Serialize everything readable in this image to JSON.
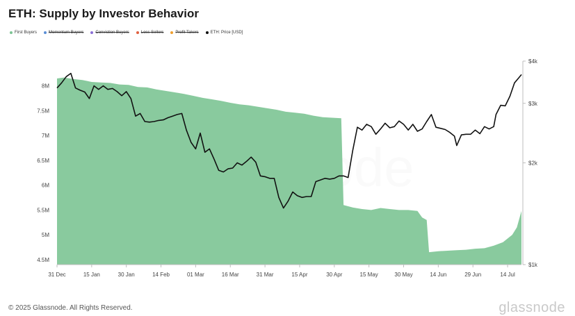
{
  "title": "ETH: Supply by Investor Behavior",
  "legend": [
    {
      "label": "First Buyers",
      "color": "#7cc494",
      "disabled": false
    },
    {
      "label": "Momentum Buyers",
      "color": "#5b8fd6",
      "disabled": true
    },
    {
      "label": "Conviction Buyers",
      "color": "#8b6fd6",
      "disabled": true
    },
    {
      "label": "Loss Sellers",
      "color": "#e06040",
      "disabled": true
    },
    {
      "label": "Profit Takers",
      "color": "#f0a030",
      "disabled": true
    },
    {
      "label": "ETH: Price [USD]",
      "color": "#111111",
      "disabled": false
    }
  ],
  "footer": "© 2025 Glassnode. All Rights Reserved.",
  "brand": "glassnode",
  "watermark": "glassnode",
  "chart_data": {
    "type": "area",
    "x_ticks": [
      "31 Dec",
      "15 Jan",
      "30 Jan",
      "14 Feb",
      "01 Mar",
      "16 Mar",
      "31 Mar",
      "15 Apr",
      "30 Apr",
      "15 May",
      "30 May",
      "14 Jun",
      "29 Jun",
      "14 Jul"
    ],
    "y_left": {
      "ticks": [
        "8M",
        "7.5M",
        "7M",
        "6.5M",
        "6M",
        "5.5M",
        "5M",
        "4.5M"
      ],
      "tick_values": [
        8.0,
        7.5,
        7.0,
        6.5,
        6.0,
        5.5,
        5.0,
        4.5
      ],
      "range": [
        4.4,
        8.5
      ]
    },
    "y_right": {
      "ticks": [
        "$4k",
        "$3k",
        "$2k",
        "$1k"
      ],
      "tick_values": [
        4000,
        3000,
        2000,
        1000
      ],
      "scale": "log",
      "range": [
        1000,
        4000
      ]
    },
    "grid": false,
    "legend_position": "top-left",
    "series": [
      {
        "name": "First Buyers",
        "axis": "left",
        "color": "#7cc494",
        "points": [
          [
            "2024-12-31",
            8.15
          ],
          [
            "2025-01-03",
            8.17
          ],
          [
            "2025-01-07",
            8.14
          ],
          [
            "2025-01-11",
            8.12
          ],
          [
            "2025-01-15",
            8.08
          ],
          [
            "2025-01-19",
            8.07
          ],
          [
            "2025-01-23",
            8.06
          ],
          [
            "2025-01-27",
            8.03
          ],
          [
            "2025-01-31",
            8.02
          ],
          [
            "2025-02-04",
            7.98
          ],
          [
            "2025-02-08",
            7.97
          ],
          [
            "2025-02-12",
            7.93
          ],
          [
            "2025-02-16",
            7.9
          ],
          [
            "2025-02-20",
            7.87
          ],
          [
            "2025-02-24",
            7.84
          ],
          [
            "2025-02-28",
            7.8
          ],
          [
            "2025-03-04",
            7.76
          ],
          [
            "2025-03-08",
            7.73
          ],
          [
            "2025-03-12",
            7.7
          ],
          [
            "2025-03-16",
            7.66
          ],
          [
            "2025-03-20",
            7.63
          ],
          [
            "2025-03-24",
            7.61
          ],
          [
            "2025-03-28",
            7.58
          ],
          [
            "2025-04-01",
            7.55
          ],
          [
            "2025-04-05",
            7.52
          ],
          [
            "2025-04-09",
            7.48
          ],
          [
            "2025-04-13",
            7.46
          ],
          [
            "2025-04-17",
            7.44
          ],
          [
            "2025-04-21",
            7.4
          ],
          [
            "2025-04-25",
            7.37
          ],
          [
            "2025-04-29",
            7.36
          ],
          [
            "2025-05-03",
            7.35
          ],
          [
            "2025-05-04",
            5.6
          ],
          [
            "2025-05-08",
            5.55
          ],
          [
            "2025-05-12",
            5.52
          ],
          [
            "2025-05-16",
            5.5
          ],
          [
            "2025-05-20",
            5.54
          ],
          [
            "2025-05-24",
            5.52
          ],
          [
            "2025-05-28",
            5.5
          ],
          [
            "2025-06-01",
            5.5
          ],
          [
            "2025-06-05",
            5.48
          ],
          [
            "2025-06-07",
            5.35
          ],
          [
            "2025-06-09",
            5.3
          ],
          [
            "2025-06-10",
            4.65
          ],
          [
            "2025-06-14",
            4.67
          ],
          [
            "2025-06-18",
            4.68
          ],
          [
            "2025-06-22",
            4.69
          ],
          [
            "2025-06-26",
            4.7
          ],
          [
            "2025-06-30",
            4.72
          ],
          [
            "2025-07-04",
            4.73
          ],
          [
            "2025-07-08",
            4.78
          ],
          [
            "2025-07-12",
            4.85
          ],
          [
            "2025-07-16",
            5.0
          ],
          [
            "2025-07-18",
            5.15
          ],
          [
            "2025-07-20",
            5.48
          ]
        ]
      },
      {
        "name": "ETH: Price [USD]",
        "axis": "right",
        "color": "#111111",
        "points": [
          [
            "2024-12-31",
            3330
          ],
          [
            "2025-01-02",
            3450
          ],
          [
            "2025-01-04",
            3600
          ],
          [
            "2025-01-06",
            3680
          ],
          [
            "2025-01-08",
            3330
          ],
          [
            "2025-01-10",
            3280
          ],
          [
            "2025-01-12",
            3240
          ],
          [
            "2025-01-14",
            3100
          ],
          [
            "2025-01-16",
            3380
          ],
          [
            "2025-01-18",
            3300
          ],
          [
            "2025-01-20",
            3380
          ],
          [
            "2025-01-22",
            3300
          ],
          [
            "2025-01-24",
            3320
          ],
          [
            "2025-01-26",
            3250
          ],
          [
            "2025-01-28",
            3160
          ],
          [
            "2025-01-30",
            3250
          ],
          [
            "2025-02-01",
            3100
          ],
          [
            "2025-02-03",
            2750
          ],
          [
            "2025-02-05",
            2800
          ],
          [
            "2025-02-07",
            2650
          ],
          [
            "2025-02-09",
            2640
          ],
          [
            "2025-02-11",
            2650
          ],
          [
            "2025-02-13",
            2670
          ],
          [
            "2025-02-15",
            2680
          ],
          [
            "2025-02-17",
            2720
          ],
          [
            "2025-02-19",
            2750
          ],
          [
            "2025-02-21",
            2780
          ],
          [
            "2025-02-23",
            2800
          ],
          [
            "2025-02-25",
            2500
          ],
          [
            "2025-02-27",
            2300
          ],
          [
            "2025-03-01",
            2200
          ],
          [
            "2025-03-03",
            2450
          ],
          [
            "2025-03-05",
            2150
          ],
          [
            "2025-03-07",
            2200
          ],
          [
            "2025-03-09",
            2050
          ],
          [
            "2025-03-11",
            1900
          ],
          [
            "2025-03-13",
            1880
          ],
          [
            "2025-03-15",
            1920
          ],
          [
            "2025-03-17",
            1930
          ],
          [
            "2025-03-19",
            2000
          ],
          [
            "2025-03-21",
            1970
          ],
          [
            "2025-03-23",
            2020
          ],
          [
            "2025-03-25",
            2080
          ],
          [
            "2025-03-27",
            2010
          ],
          [
            "2025-03-29",
            1830
          ],
          [
            "2025-03-31",
            1820
          ],
          [
            "2025-04-02",
            1800
          ],
          [
            "2025-04-04",
            1800
          ],
          [
            "2025-04-06",
            1580
          ],
          [
            "2025-04-08",
            1470
          ],
          [
            "2025-04-10",
            1540
          ],
          [
            "2025-04-12",
            1640
          ],
          [
            "2025-04-14",
            1600
          ],
          [
            "2025-04-16",
            1580
          ],
          [
            "2025-04-18",
            1590
          ],
          [
            "2025-04-20",
            1590
          ],
          [
            "2025-04-22",
            1760
          ],
          [
            "2025-04-24",
            1780
          ],
          [
            "2025-04-26",
            1800
          ],
          [
            "2025-04-28",
            1790
          ],
          [
            "2025-04-30",
            1800
          ],
          [
            "2025-05-02",
            1830
          ],
          [
            "2025-05-04",
            1830
          ],
          [
            "2025-05-06",
            1810
          ],
          [
            "2025-05-08",
            2180
          ],
          [
            "2025-05-10",
            2550
          ],
          [
            "2025-05-12",
            2500
          ],
          [
            "2025-05-14",
            2600
          ],
          [
            "2025-05-16",
            2560
          ],
          [
            "2025-05-18",
            2430
          ],
          [
            "2025-05-20",
            2520
          ],
          [
            "2025-05-22",
            2620
          ],
          [
            "2025-05-24",
            2540
          ],
          [
            "2025-05-26",
            2560
          ],
          [
            "2025-05-28",
            2660
          ],
          [
            "2025-05-30",
            2600
          ],
          [
            "2025-06-01",
            2500
          ],
          [
            "2025-06-03",
            2600
          ],
          [
            "2025-06-05",
            2480
          ],
          [
            "2025-06-07",
            2520
          ],
          [
            "2025-06-09",
            2650
          ],
          [
            "2025-06-11",
            2780
          ],
          [
            "2025-06-13",
            2550
          ],
          [
            "2025-06-15",
            2530
          ],
          [
            "2025-06-17",
            2510
          ],
          [
            "2025-06-19",
            2460
          ],
          [
            "2025-06-21",
            2400
          ],
          [
            "2025-06-22",
            2250
          ],
          [
            "2025-06-24",
            2420
          ],
          [
            "2025-06-26",
            2430
          ],
          [
            "2025-06-28",
            2430
          ],
          [
            "2025-06-30",
            2500
          ],
          [
            "2025-07-02",
            2440
          ],
          [
            "2025-07-04",
            2560
          ],
          [
            "2025-07-06",
            2520
          ],
          [
            "2025-07-08",
            2560
          ],
          [
            "2025-07-09",
            2780
          ],
          [
            "2025-07-11",
            2960
          ],
          [
            "2025-07-13",
            2950
          ],
          [
            "2025-07-15",
            3150
          ],
          [
            "2025-07-17",
            3450
          ],
          [
            "2025-07-19",
            3580
          ],
          [
            "2025-07-20",
            3650
          ]
        ]
      }
    ]
  }
}
